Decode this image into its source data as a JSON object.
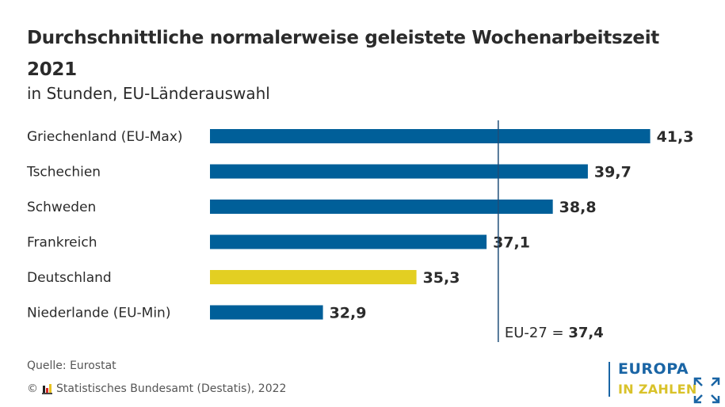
{
  "header": {
    "title_line1": "Durchschnittliche normalerweise geleistete Wochenarbeitszeit",
    "title_line2": "2021",
    "subtitle": "in Stunden, EU-Länderauswahl"
  },
  "chart_data": {
    "type": "bar",
    "orientation": "horizontal",
    "title": "Durchschnittliche normalerweise geleistete Wochenarbeitszeit 2021",
    "subtitle": "in Stunden, EU-Länderauswahl",
    "categories": [
      "Griechenland (EU-Max)",
      "Tschechien",
      "Schweden",
      "Frankreich",
      "Deutschland",
      "Niederlande (EU-Min)"
    ],
    "values": [
      41.3,
      39.7,
      38.8,
      37.1,
      35.3,
      32.9
    ],
    "value_labels": [
      "41,3",
      "39,7",
      "38,8",
      "37,1",
      "35,3",
      "32,9"
    ],
    "bar_colors": [
      "#005f99",
      "#005f99",
      "#005f99",
      "#005f99",
      "#e3cf22",
      "#005f99"
    ],
    "highlight": "Deutschland",
    "xlim": [
      30,
      42
    ],
    "xlabel": "",
    "ylabel": "",
    "grid": false,
    "reference_line": {
      "label": "EU-27 =",
      "value": 37.4,
      "value_label": "37,4",
      "color": "#1f4e79"
    }
  },
  "footer": {
    "source": "Quelle: Eurostat",
    "copyright_symbol": "©",
    "copyright_text": "Statistisches Bundesamt (Destatis), 2022"
  },
  "logo": {
    "line1": "EUROPA",
    "line2": "IN ZAHLEN",
    "primary_color": "#1a65a5",
    "secondary_color": "#d9c22a"
  }
}
